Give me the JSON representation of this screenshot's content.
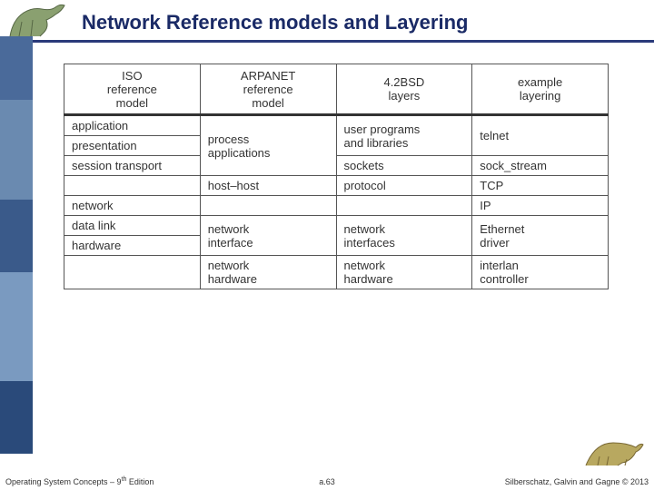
{
  "title": "Network Reference models and Layering",
  "sidebar_colors": [
    "#4a6a9a",
    "#6a8ab0",
    "#3a5a8a",
    "#7a9ac0",
    "#2a4a7a"
  ],
  "sidebar_heights": [
    70,
    110,
    80,
    120,
    80
  ],
  "table": {
    "headers": [
      "ISO\nreference\nmodel",
      "ARPANET\nreference\nmodel",
      "4.2BSD\nlayers",
      "example\nlayering"
    ],
    "col_widths": [
      "25%",
      "25%",
      "25%",
      "25%"
    ],
    "body": [
      [
        {
          "text": "application",
          "rowspan": 1
        },
        {
          "text": "process\napplications",
          "rowspan": 3
        },
        {
          "text": "user programs\nand libraries",
          "rowspan": 2
        },
        {
          "text": "telnet",
          "rowspan": 2
        }
      ],
      [
        {
          "text": "presentation",
          "rowspan": 1
        }
      ],
      [
        {
          "text": "session transport",
          "rowspan": 1
        },
        {
          "text": "sockets",
          "rowspan": 1
        },
        {
          "text": "sock_stream",
          "rowspan": 1
        }
      ],
      [
        {
          "text": "",
          "rowspan": 1
        },
        {
          "text": "host–host",
          "rowspan": 1
        },
        {
          "text": "protocol",
          "rowspan": 1
        },
        {
          "text": "TCP",
          "rowspan": 1
        }
      ],
      [
        {
          "text": "network",
          "rowspan": 1
        },
        {
          "text": "",
          "rowspan": 1
        },
        {
          "text": "",
          "rowspan": 1
        },
        {
          "text": "IP",
          "rowspan": 1
        }
      ],
      [
        {
          "text": "data link",
          "rowspan": 1
        },
        {
          "text": "network\ninterface",
          "rowspan": 2
        },
        {
          "text": "network\ninterfaces",
          "rowspan": 2
        },
        {
          "text": "Ethernet\ndriver",
          "rowspan": 2
        }
      ],
      [
        {
          "text": "hardware",
          "rowspan": 1
        }
      ],
      [
        {
          "text": "",
          "rowspan": 1
        },
        {
          "text": "network\nhardware",
          "rowspan": 1
        },
        {
          "text": "network\nhardware",
          "rowspan": 1
        },
        {
          "text": "interlan\ncontroller",
          "rowspan": 1
        }
      ]
    ]
  },
  "footer": {
    "left_a": "Operating System Concepts – 9",
    "left_sup": "th",
    "left_b": " Edition",
    "center": "a.63",
    "right": "Silberschatz, Galvin and Gagne © 2013"
  },
  "dino_top_color": "#8aa070",
  "dino_bottom_color": "#b8a860"
}
